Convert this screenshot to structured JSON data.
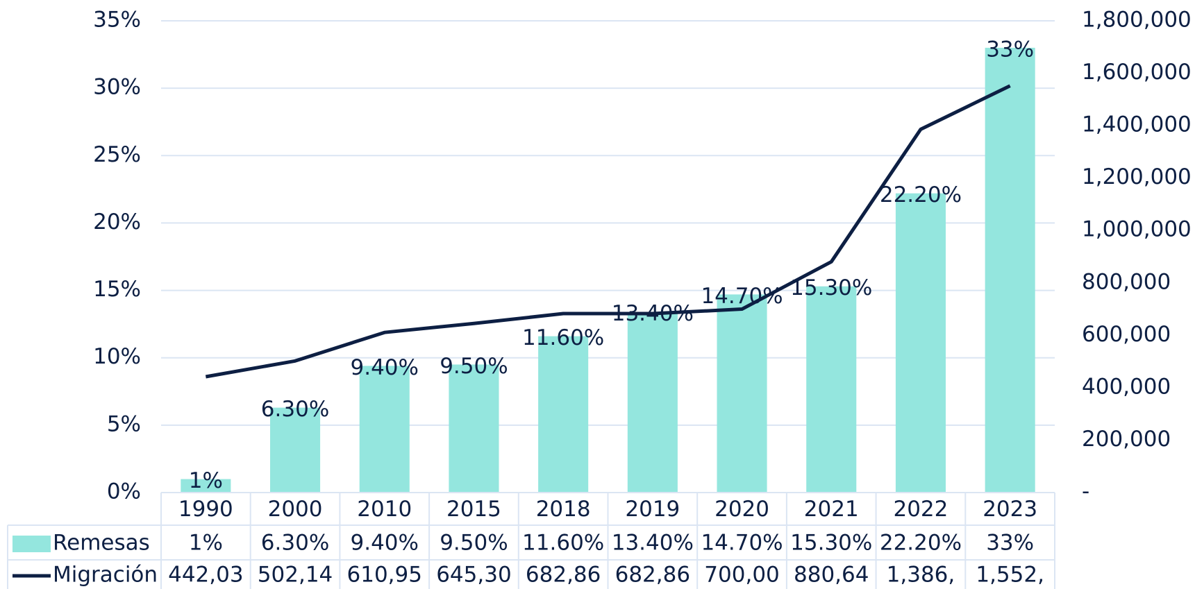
{
  "chart_data": {
    "type": "bar_line",
    "categories": [
      "1990",
      "2000",
      "2010",
      "2015",
      "2018",
      "2019",
      "2020",
      "2021",
      "2022",
      "2023"
    ],
    "series": [
      {
        "name": "Remesas",
        "type": "bar",
        "color": "#94e6de",
        "axis": "y",
        "values": [
          1,
          6.3,
          9.4,
          9.5,
          11.6,
          13.4,
          14.7,
          15.3,
          22.2,
          33
        ],
        "value_labels": [
          "1%",
          "6.30%",
          "9.40%",
          "9.50%",
          "11.60%",
          "13.40%",
          "14.70%",
          "15.30%",
          "22.20%",
          "33%"
        ]
      },
      {
        "name": "Migración",
        "type": "line",
        "color": "#0d1f43",
        "axis": "y2",
        "values": [
          442030,
          502140,
          610950,
          645300,
          682860,
          682860,
          700000,
          880640,
          1386000,
          1552000
        ],
        "value_labels": [
          "442,03",
          "502,14",
          "610,95",
          "645,30",
          "682,86",
          "682,86",
          "700,00",
          "880,64",
          "1,386,",
          "1,552,"
        ]
      }
    ],
    "ylim": [
      0,
      35
    ],
    "yticks": [
      {
        "value": 0,
        "label": "0%"
      },
      {
        "value": 5,
        "label": "5%"
      },
      {
        "value": 10,
        "label": "10%"
      },
      {
        "value": 15,
        "label": "15%"
      },
      {
        "value": 20,
        "label": "20%"
      },
      {
        "value": 25,
        "label": "25%"
      },
      {
        "value": 30,
        "label": "30%"
      },
      {
        "value": 35,
        "label": "35%"
      }
    ],
    "y2lim": [
      0,
      1800000
    ],
    "y2ticks": [
      {
        "value": 0,
        "label": "-"
      },
      {
        "value": 200000,
        "label": "200,000"
      },
      {
        "value": 400000,
        "label": "400,000"
      },
      {
        "value": 600000,
        "label": "600,000"
      },
      {
        "value": 800000,
        "label": "800,000"
      },
      {
        "value": 1000000,
        "label": "1,000,000"
      },
      {
        "value": 1200000,
        "label": "1,200,000"
      },
      {
        "value": 1400000,
        "label": "1,400,000"
      },
      {
        "value": 1600000,
        "label": "1,600,000"
      },
      {
        "value": 1800000,
        "label": "1,800,000"
      }
    ],
    "grid": true
  }
}
